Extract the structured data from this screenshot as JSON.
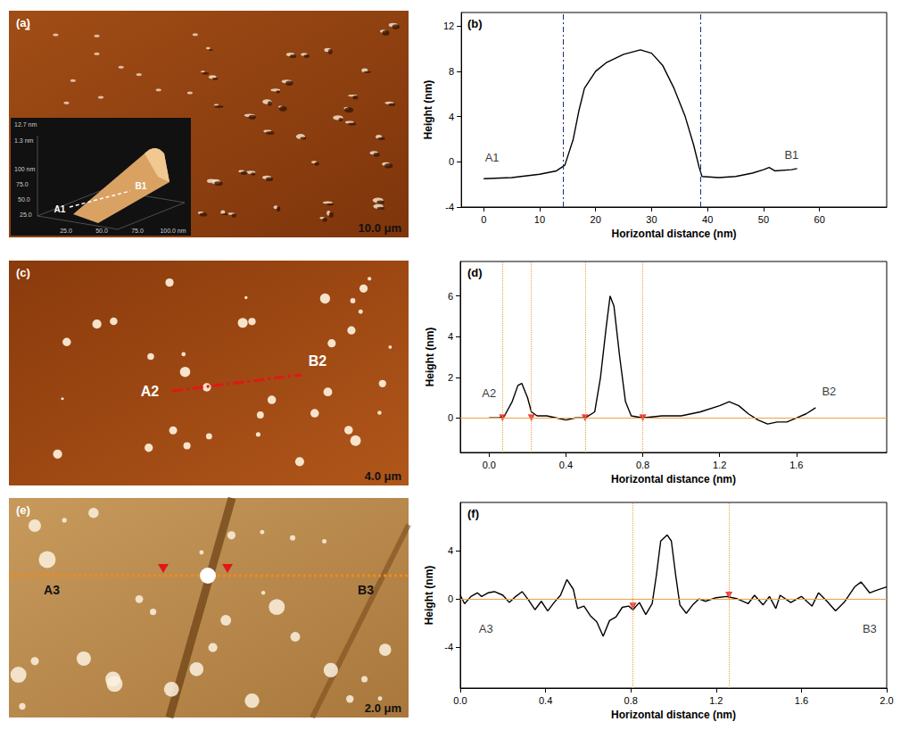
{
  "chart_data": [
    {
      "panel": "(b)",
      "type": "line",
      "x_label": "Horizontal distance (nm)",
      "y_label": "Height (nm)",
      "x": [
        0,
        5,
        10,
        13,
        14.5,
        16,
        17,
        18,
        20,
        22,
        25,
        28,
        30,
        32,
        34,
        36,
        37.5,
        38.5,
        39,
        42,
        45,
        48,
        50,
        51,
        52,
        55,
        56
      ],
      "values": [
        -1.5,
        -1.4,
        -1.1,
        -0.8,
        -0.3,
        2,
        4.5,
        6.5,
        8,
        8.8,
        9.5,
        9.9,
        9.6,
        8.5,
        6.5,
        4,
        1.5,
        -0.5,
        -1.3,
        -1.4,
        -1.3,
        -1.0,
        -0.7,
        -0.5,
        -0.8,
        -0.7,
        -0.6
      ],
      "color": "#000000",
      "xlim": [
        -4,
        72
      ],
      "xticks": [
        0,
        10,
        20,
        30,
        40,
        50,
        60
      ],
      "ylim": [
        -4,
        13.2
      ],
      "yticks": [
        -4,
        0,
        4,
        8,
        12
      ],
      "grid": false,
      "vlines": [
        14.2,
        38.8
      ],
      "annotations": [
        {
          "text": "A1",
          "x": 1.5,
          "y": 0.4
        },
        {
          "text": "B1",
          "x": 55,
          "y": 0.6
        }
      ]
    },
    {
      "panel": "(d)",
      "type": "line",
      "x_label": "Horizontal distance (nm)",
      "y_label": "Height (nm)",
      "x": [
        0,
        0.05,
        0.08,
        0.12,
        0.15,
        0.17,
        0.2,
        0.22,
        0.25,
        0.3,
        0.35,
        0.4,
        0.45,
        0.5,
        0.55,
        0.58,
        0.61,
        0.63,
        0.65,
        0.68,
        0.71,
        0.74,
        0.8,
        0.9,
        1.0,
        1.1,
        1.2,
        1.25,
        1.3,
        1.35,
        1.4,
        1.45,
        1.5,
        1.55,
        1.6,
        1.65,
        1.7
      ],
      "values": [
        0,
        0,
        0.1,
        0.8,
        1.6,
        1.7,
        1.0,
        0.3,
        0.1,
        0.1,
        0,
        -0.1,
        0,
        0,
        0.3,
        2,
        4.5,
        6.0,
        5.5,
        3,
        0.8,
        0.1,
        0,
        0.1,
        0.1,
        0.3,
        0.6,
        0.8,
        0.6,
        0.2,
        -0.1,
        -0.3,
        -0.2,
        -0.2,
        0,
        0.2,
        0.5
      ],
      "color": "#000000",
      "xlim": [
        -0.15,
        2.07
      ],
      "xticks": [
        {
          "value": 0,
          "label": "0.0"
        },
        0.4,
        0.8,
        1.2,
        1.6
      ],
      "ylim": [
        -1.7,
        7.7
      ],
      "yticks": [
        0,
        2,
        4,
        6
      ],
      "grid": false,
      "hline": 0,
      "vlines": [
        0.07,
        0.22,
        0.5,
        0.8
      ],
      "markers": {
        "x": [
          0.07,
          0.22,
          0.5,
          0.8
        ],
        "y": [
          0,
          0,
          0,
          0
        ]
      },
      "annotations": [
        {
          "text": "A2",
          "x": 0.0,
          "y": 1.2
        },
        {
          "text": "B2",
          "x": 1.77,
          "y": 1.3
        }
      ]
    },
    {
      "panel": "(f)",
      "type": "line",
      "x_label": "Horizontal distance (nm)",
      "y_label": "Height (nm)",
      "x": [
        0,
        0.02,
        0.05,
        0.08,
        0.1,
        0.13,
        0.16,
        0.2,
        0.23,
        0.26,
        0.29,
        0.32,
        0.35,
        0.38,
        0.41,
        0.44,
        0.47,
        0.5,
        0.53,
        0.55,
        0.58,
        0.61,
        0.64,
        0.67,
        0.7,
        0.73,
        0.76,
        0.79,
        0.81,
        0.84,
        0.87,
        0.9,
        0.92,
        0.94,
        0.97,
        0.99,
        1.01,
        1.03,
        1.06,
        1.09,
        1.12,
        1.15,
        1.2,
        1.25,
        1.3,
        1.35,
        1.38,
        1.42,
        1.45,
        1.48,
        1.5,
        1.55,
        1.6,
        1.65,
        1.68,
        1.72,
        1.76,
        1.8,
        1.85,
        1.88,
        1.92,
        1.95,
        2.0
      ],
      "values": [
        0.3,
        -0.4,
        0.2,
        0.5,
        0.2,
        0.5,
        0.6,
        0.3,
        -0.3,
        0.2,
        0.6,
        -0.1,
        -0.9,
        -0.2,
        -1.0,
        -0.3,
        0.3,
        1.6,
        0.8,
        -0.8,
        -0.6,
        -1.4,
        -1.9,
        -3.1,
        -1.8,
        -1.5,
        -0.7,
        -0.6,
        -0.9,
        -0.3,
        -1.3,
        -0.4,
        2,
        4.8,
        5.3,
        4.8,
        2,
        -0.5,
        -1.2,
        -0.5,
        0,
        -0.2,
        0.1,
        0.2,
        0,
        -0.4,
        0.3,
        -0.5,
        0.2,
        -0.8,
        0.3,
        -0.3,
        0.2,
        -0.6,
        0.5,
        -0.2,
        -1.0,
        -0.3,
        1.0,
        1.4,
        0.5,
        0.7,
        1.0
      ],
      "color": "#000000",
      "xlim": [
        0,
        2.0
      ],
      "xticks": [
        {
          "value": 0,
          "label": "0.0"
        },
        0.4,
        0.8,
        1.2,
        1.6,
        {
          "value": 2.0,
          "label": "2.0"
        }
      ],
      "ylim": [
        -7.4,
        8
      ],
      "yticks": [
        -4,
        0,
        4
      ],
      "grid": false,
      "hline": 0,
      "vlines": [
        0.81,
        1.26
      ],
      "markers": {
        "x": [
          0.81,
          1.26
        ],
        "y": [
          -0.6,
          0.3
        ]
      },
      "annotations": [
        {
          "text": "A3",
          "x": 0.12,
          "y": -2.5
        },
        {
          "text": "B3",
          "x": 1.92,
          "y": -2.5
        }
      ]
    }
  ],
  "images": [
    {
      "panel": "(a)",
      "scale_bar": "10.0 μm",
      "inset": {
        "z_labels": [
          "12.7 nm",
          "1.3 nm"
        ],
        "y_labels": [
          "100 nm",
          "75.0",
          "50.0",
          "25.0"
        ],
        "x_labels": [
          "25.0",
          "50.0",
          "75.0",
          "100.0 nm"
        ],
        "line": [
          "A1",
          "B1"
        ]
      }
    },
    {
      "panel": "(c)",
      "scale_bar": "4.0 μm",
      "line": [
        "A2",
        "B2"
      ]
    },
    {
      "panel": "(e)",
      "scale_bar": "2.0 μm",
      "line": [
        "A3",
        "B3"
      ]
    }
  ]
}
